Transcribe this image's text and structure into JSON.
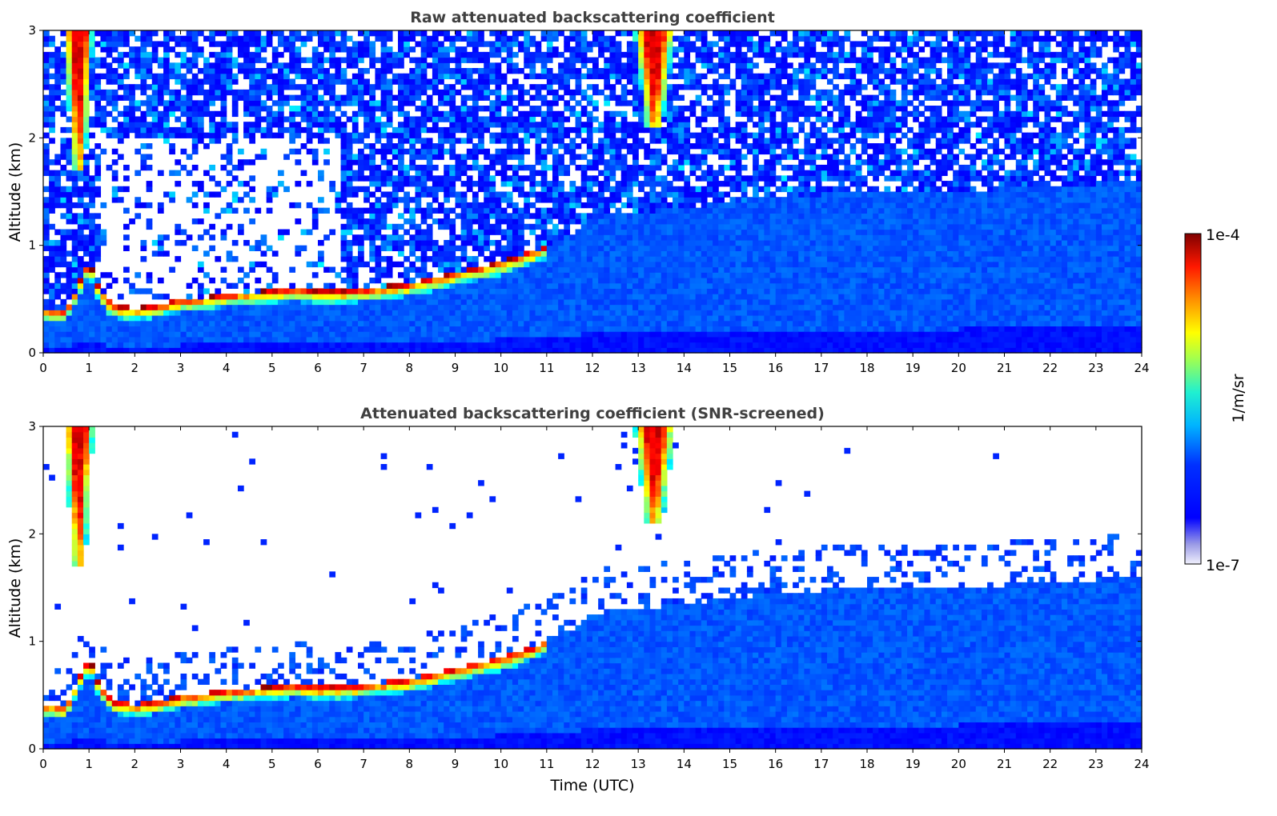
{
  "chart_data": [
    {
      "type": "heatmap",
      "title": "Raw attenuated backscattering coefficient",
      "xlabel": "",
      "ylabel": "Altitude (km)",
      "xlim": [
        0,
        24
      ],
      "ylim": [
        0,
        3
      ],
      "x_ticks": [
        "0",
        "1",
        "2",
        "3",
        "4",
        "5",
        "6",
        "7",
        "8",
        "9",
        "10",
        "11",
        "12",
        "13",
        "14",
        "15",
        "16",
        "17",
        "18",
        "19",
        "20",
        "21",
        "22",
        "23",
        "24"
      ],
      "y_ticks": [
        "0",
        "1",
        "2",
        "3"
      ],
      "screened": false,
      "features": {
        "boundary_layer_top_km": [
          [
            0.0,
            0.42
          ],
          [
            0.5,
            0.4
          ],
          [
            1.0,
            0.85
          ],
          [
            1.2,
            0.62
          ],
          [
            1.5,
            0.45
          ],
          [
            2.0,
            0.42
          ],
          [
            2.5,
            0.45
          ],
          [
            3.0,
            0.5
          ],
          [
            3.5,
            0.52
          ],
          [
            4.0,
            0.55
          ],
          [
            4.5,
            0.57
          ],
          [
            5.0,
            0.58
          ],
          [
            5.5,
            0.6
          ],
          [
            6.0,
            0.58
          ],
          [
            6.5,
            0.58
          ],
          [
            7.0,
            0.6
          ],
          [
            8.0,
            0.65
          ],
          [
            9.0,
            0.75
          ],
          [
            10.0,
            0.85
          ],
          [
            10.7,
            0.95
          ],
          [
            11.5,
            1.1
          ],
          [
            12.0,
            1.25
          ],
          [
            12.5,
            1.3
          ],
          [
            13.0,
            1.3
          ],
          [
            14.0,
            1.35
          ],
          [
            16.0,
            1.45
          ],
          [
            18.0,
            1.5
          ],
          [
            20.0,
            1.5
          ],
          [
            22.0,
            1.55
          ],
          [
            24.0,
            1.6
          ]
        ],
        "high_clouds": [
          {
            "x_start": 0.45,
            "x_end": 1.1,
            "base_km": 1.7,
            "top_km": 3.0
          },
          {
            "x_start": 12.9,
            "x_end": 13.8,
            "base_km": 2.1,
            "top_km": 3.0
          }
        ]
      }
    },
    {
      "type": "heatmap",
      "title": "Attenuated backscattering coefficient (SNR-screened)",
      "xlabel": "Time (UTC)",
      "ylabel": "Altitude (km)",
      "xlim": [
        0,
        24
      ],
      "ylim": [
        0,
        3
      ],
      "x_ticks": [
        "0",
        "1",
        "2",
        "3",
        "4",
        "5",
        "6",
        "7",
        "8",
        "9",
        "10",
        "11",
        "12",
        "13",
        "14",
        "15",
        "16",
        "17",
        "18",
        "19",
        "20",
        "21",
        "22",
        "23",
        "24"
      ],
      "y_ticks": [
        "0",
        "1",
        "2",
        "3"
      ],
      "screened": true
    }
  ],
  "colorbar": {
    "label": "1/m/sr",
    "max_label": "1e-4",
    "min_label": "1e-7",
    "range": [
      1e-07,
      0.0001
    ],
    "colormap": "jet",
    "low_colors": [
      "#e8e8f8",
      "#9090e0",
      "#0000ff"
    ],
    "high_colors": [
      "#00c8ff",
      "#ffff00",
      "#ff2000",
      "#800000"
    ]
  }
}
